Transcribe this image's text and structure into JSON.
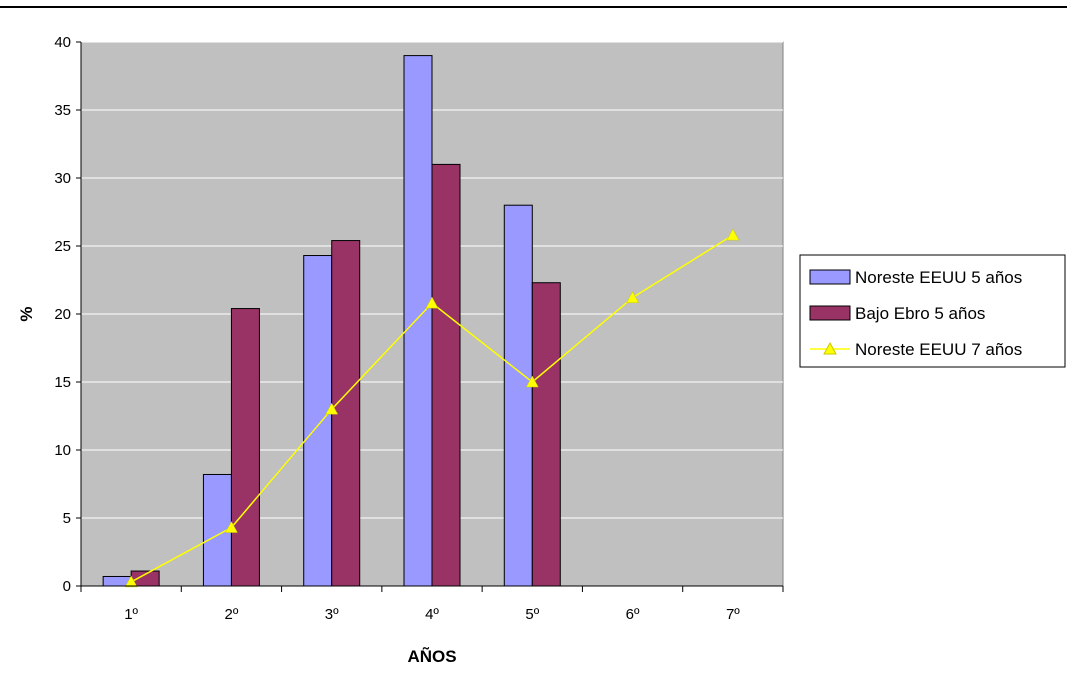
{
  "chart_data": {
    "type": "bar",
    "categories": [
      "1º",
      "2º",
      "3º",
      "4º",
      "5º",
      "6º",
      "7º"
    ],
    "series": [
      {
        "name": "Noreste EEUU 5 años",
        "kind": "bar",
        "color": "#9999ff",
        "values": [
          0.7,
          8.2,
          24.3,
          39.0,
          28.0,
          null,
          null
        ]
      },
      {
        "name": "Bajo Ebro 5 años",
        "kind": "bar",
        "color": "#993366",
        "values": [
          1.1,
          20.4,
          25.4,
          31.0,
          22.3,
          null,
          null
        ]
      },
      {
        "name": "Noreste EEUU 7 años",
        "kind": "line",
        "color": "#ffff00",
        "values": [
          0.3,
          4.3,
          13.0,
          20.8,
          15.0,
          21.2,
          25.8
        ]
      }
    ],
    "xlabel": "AÑOS",
    "ylabel": "%",
    "ylim": [
      0,
      40
    ],
    "yticks": [
      0,
      5,
      10,
      15,
      20,
      25,
      30,
      35,
      40
    ],
    "grid": true,
    "plot_background": "#c0c0c0",
    "legend_position": "right"
  }
}
